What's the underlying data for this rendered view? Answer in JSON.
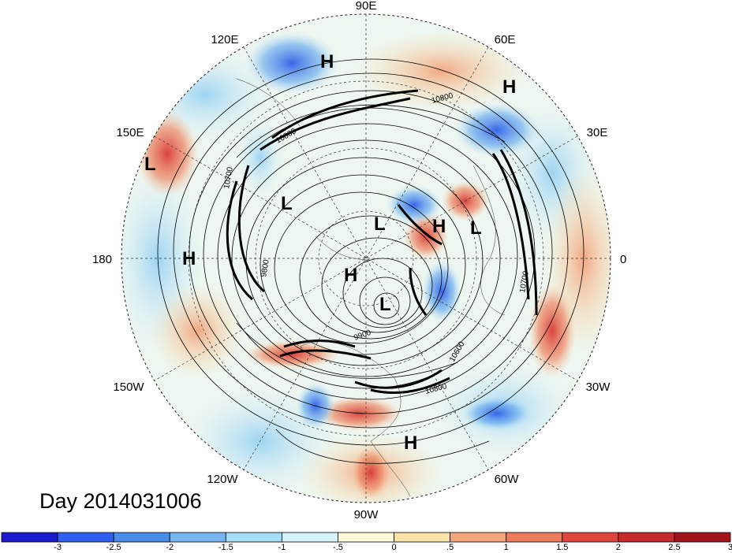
{
  "map": {
    "projection": "polar stereographic, north pole",
    "day_label": "Day 2014031006",
    "longitude_labels": [
      "90E",
      "60E",
      "30E",
      "0",
      "30W",
      "60W",
      "90W",
      "120W",
      "150W",
      "180",
      "150E",
      "120E"
    ],
    "markers": [
      {
        "type": "H",
        "label": "H"
      },
      {
        "type": "H",
        "label": "H"
      },
      {
        "type": "L",
        "label": "L"
      },
      {
        "type": "H",
        "label": "H"
      },
      {
        "type": "L",
        "label": "L"
      },
      {
        "type": "L",
        "label": "L"
      },
      {
        "type": "H",
        "label": "H"
      },
      {
        "type": "L",
        "label": "L"
      },
      {
        "type": "H",
        "label": "H"
      },
      {
        "type": "L",
        "label": "L"
      },
      {
        "type": "H",
        "label": "H"
      }
    ],
    "contour_labels": [
      "10800",
      "9800",
      "9900",
      "10700",
      "10600",
      "10800",
      "10700",
      "10800"
    ]
  },
  "colorbar": {
    "colors": [
      "#1b1bcf",
      "#2f5ff0",
      "#4a8de8",
      "#76b5f0",
      "#a6ddf7",
      "#d5f2fb",
      "#fdf9d6",
      "#fbe2a6",
      "#f3a679",
      "#ec7b5c",
      "#e0453d",
      "#c72a2c",
      "#a2141c"
    ],
    "tick_labels": [
      "-3",
      "-2.5",
      "-2",
      "-1.5",
      "-1",
      "-.5",
      "0",
      ".5",
      "1",
      "1.5",
      "2",
      "2.5",
      "3"
    ]
  }
}
